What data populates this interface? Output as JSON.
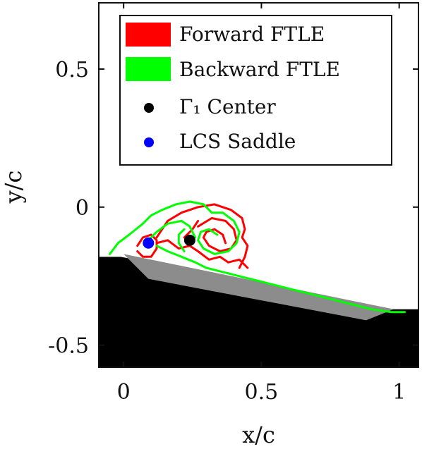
{
  "chart_data": {
    "type": "line",
    "xlabel": "x/c",
    "ylabel": "y/c",
    "xlim": [
      -0.09,
      1.07
    ],
    "ylim": [
      -0.58,
      0.74
    ],
    "x_ticks": [
      {
        "value": 0,
        "label": "0"
      },
      {
        "value": 0.5,
        "label": "0.5"
      },
      {
        "value": 1,
        "label": "1"
      }
    ],
    "y_ticks": [
      {
        "value": 0.5,
        "label": "0.5"
      },
      {
        "value": 0,
        "label": "0"
      },
      {
        "value": -0.5,
        "label": "-0.5"
      }
    ],
    "grid": false,
    "legend_position": "top-right",
    "legend": [
      {
        "label": "Forward FTLE",
        "color": "#ff0000",
        "marker": "patch"
      },
      {
        "label": "Backward FTLE",
        "color": "#00ff00",
        "marker": "patch"
      },
      {
        "label": "Γ₁ Center",
        "color": "#000000",
        "marker": "dot"
      },
      {
        "label": "LCS Saddle",
        "color": "#0000ff",
        "marker": "dot"
      }
    ],
    "series": [
      {
        "name": "Forward FTLE",
        "color": "#ff0000",
        "curves": [
          [
            [
              0.12,
              -0.11
            ],
            [
              0.16,
              -0.05
            ],
            [
              0.21,
              -0.02
            ],
            [
              0.27,
              0.0
            ],
            [
              0.33,
              0.01
            ],
            [
              0.39,
              -0.01
            ],
            [
              0.43,
              -0.04
            ],
            [
              0.44,
              -0.08
            ],
            [
              0.43,
              -0.11
            ],
            [
              0.45,
              -0.14
            ],
            [
              0.44,
              -0.18
            ],
            [
              0.42,
              -0.22
            ]
          ],
          [
            [
              0.27,
              -0.07
            ],
            [
              0.32,
              -0.04
            ],
            [
              0.37,
              -0.05
            ],
            [
              0.4,
              -0.08
            ],
            [
              0.41,
              -0.12
            ],
            [
              0.39,
              -0.15
            ],
            [
              0.35,
              -0.16
            ],
            [
              0.31,
              -0.14
            ],
            [
              0.29,
              -0.11
            ],
            [
              0.3,
              -0.09
            ],
            [
              0.33,
              -0.08
            ],
            [
              0.36,
              -0.1
            ],
            [
              0.37,
              -0.13
            ]
          ],
          [
            [
              0.05,
              -0.14
            ],
            [
              0.07,
              -0.11
            ],
            [
              0.1,
              -0.1
            ],
            [
              0.12,
              -0.12
            ],
            [
              0.12,
              -0.15
            ],
            [
              0.1,
              -0.18
            ],
            [
              0.07,
              -0.18
            ],
            [
              0.05,
              -0.16
            ]
          ],
          [
            [
              0.12,
              -0.13
            ],
            [
              0.16,
              -0.12
            ],
            [
              0.2,
              -0.15
            ],
            [
              0.24,
              -0.14
            ],
            [
              0.27,
              -0.16
            ],
            [
              0.31,
              -0.19
            ],
            [
              0.35,
              -0.18
            ],
            [
              0.38,
              -0.2
            ],
            [
              0.42,
              -0.19
            ],
            [
              0.45,
              -0.22
            ]
          ],
          [
            [
              0.22,
              -0.11
            ],
            [
              0.25,
              -0.08
            ],
            [
              0.27,
              -0.05
            ]
          ]
        ]
      },
      {
        "name": "Backward FTLE",
        "color": "#00ff00",
        "curves": [
          [
            [
              -0.05,
              -0.17
            ],
            [
              -0.02,
              -0.13
            ],
            [
              0.02,
              -0.1
            ],
            [
              0.07,
              -0.06
            ],
            [
              0.1,
              -0.03
            ],
            [
              0.14,
              -0.01
            ],
            [
              0.19,
              0.01
            ],
            [
              0.24,
              0.02
            ],
            [
              0.29,
              0.01
            ],
            [
              0.32,
              -0.02
            ]
          ],
          [
            [
              0.32,
              -0.02
            ],
            [
              0.36,
              -0.02
            ],
            [
              0.4,
              -0.05
            ],
            [
              0.42,
              -0.09
            ],
            [
              0.41,
              -0.13
            ],
            [
              0.38,
              -0.16
            ],
            [
              0.33,
              -0.17
            ],
            [
              0.29,
              -0.15
            ],
            [
              0.27,
              -0.12
            ],
            [
              0.28,
              -0.09
            ],
            [
              0.31,
              -0.08
            ],
            [
              0.34,
              -0.1
            ]
          ],
          [
            [
              0.09,
              -0.12
            ],
            [
              0.12,
              -0.09
            ],
            [
              0.16,
              -0.06
            ],
            [
              0.21,
              -0.05
            ],
            [
              0.24,
              -0.07
            ],
            [
              0.26,
              -0.11
            ]
          ],
          [
            [
              0.12,
              -0.14
            ],
            [
              0.16,
              -0.16
            ],
            [
              0.21,
              -0.18
            ],
            [
              0.26,
              -0.2
            ],
            [
              0.3,
              -0.22
            ],
            [
              0.34,
              -0.23
            ]
          ],
          [
            [
              0.34,
              -0.23
            ],
            [
              0.42,
              -0.25
            ],
            [
              0.5,
              -0.27
            ],
            [
              0.58,
              -0.29
            ],
            [
              0.66,
              -0.31
            ],
            [
              0.74,
              -0.33
            ],
            [
              0.82,
              -0.35
            ],
            [
              0.9,
              -0.37
            ],
            [
              0.97,
              -0.38
            ],
            [
              1.02,
              -0.38
            ]
          ],
          [
            [
              0.22,
              -0.16
            ],
            [
              0.2,
              -0.13
            ],
            [
              0.2,
              -0.1
            ],
            [
              0.22,
              -0.08
            ]
          ]
        ]
      }
    ],
    "points": [
      {
        "name": "Γ₁ Center",
        "x": 0.24,
        "y": -0.12,
        "color": "#000000"
      },
      {
        "name": "LCS Saddle",
        "x": 0.09,
        "y": -0.13,
        "color": "#0000ff"
      }
    ]
  }
}
